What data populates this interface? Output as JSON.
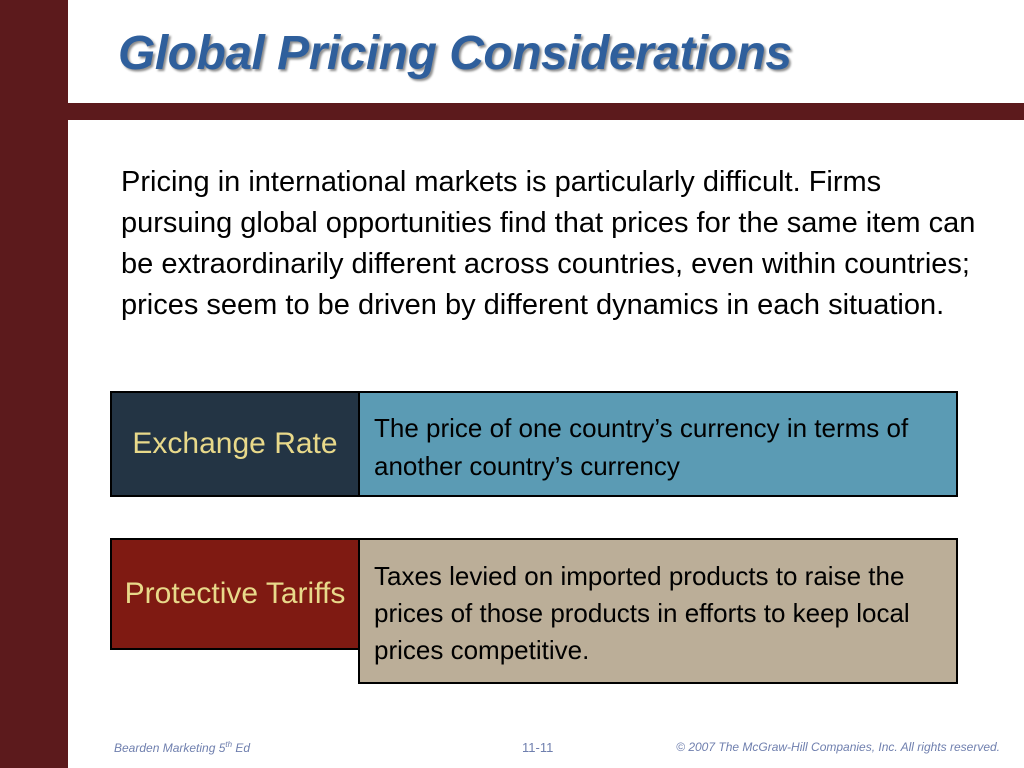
{
  "slide": {
    "title": "Global Pricing Considerations",
    "body": "Pricing in international markets is particularly difficult. Firms pursuing global opportunities find that prices for the same item can be  extraordinarily different across countries, even within countries; prices seem to be driven by different dynamics in each situation."
  },
  "terms": [
    {
      "term": "Exchange Rate",
      "definition": "The price of one country’s currency in terms of another country’s currency"
    },
    {
      "term": "Protective Tariffs",
      "definition": "Taxes levied on imported products to raise the prices of those products in efforts to keep local prices competitive."
    }
  ],
  "footer": {
    "left_main": "Bearden Marketing 5",
    "left_sup": "th",
    "left_end": " Ed",
    "page_number": "11-11",
    "copyright": "© 2007  The McGraw-Hill Companies, Inc.  All rights reserved."
  },
  "colors": {
    "frame": "#5c1a1c",
    "title": "#2f5f9c",
    "term1_bg": "#233444",
    "def1_bg": "#5b9bb4",
    "term2_bg": "#7f1a12",
    "def2_bg": "#bbae98",
    "term_text": "#e8d98a"
  }
}
